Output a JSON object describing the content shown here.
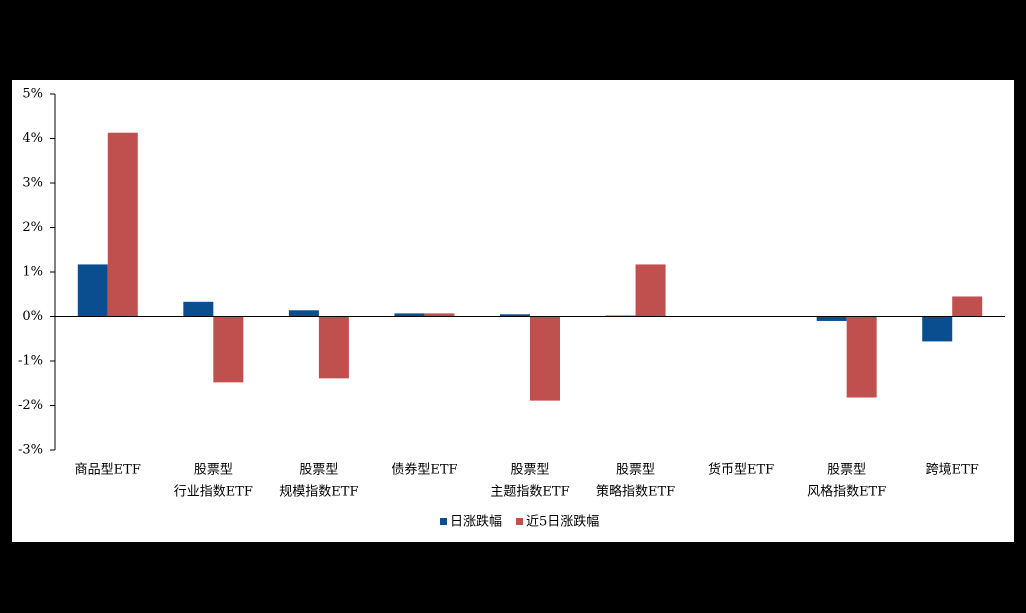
{
  "chart_data": {
    "type": "bar",
    "categories": [
      [
        "商品型ETF"
      ],
      [
        "股票型",
        "行业指数ETF"
      ],
      [
        "股票型",
        "规模指数ETF"
      ],
      [
        "债券型ETF"
      ],
      [
        "股票型",
        "主题指数ETF"
      ],
      [
        "股票型",
        "策略指数ETF"
      ],
      [
        "货币型ETF"
      ],
      [
        "股票型",
        "风格指数ETF"
      ],
      [
        "跨境ETF"
      ]
    ],
    "series": [
      {
        "name": "日涨跌幅",
        "color": "#0a4e8f",
        "values": [
          1.17,
          0.33,
          0.14,
          0.07,
          0.05,
          0.02,
          0.0,
          -0.1,
          -0.56
        ]
      },
      {
        "name": "近5日涨跌幅",
        "color": "#c0504d",
        "values": [
          4.13,
          -1.48,
          -1.39,
          0.07,
          -1.89,
          1.17,
          0.0,
          -1.82,
          0.45
        ]
      }
    ],
    "ylim": [
      -3,
      5
    ],
    "yticks": [
      {
        "value": -3,
        "label": "-3%"
      },
      {
        "value": -2,
        "label": "-2%"
      },
      {
        "value": -1,
        "label": "-1%"
      },
      {
        "value": 0,
        "label": "0%"
      },
      {
        "value": 1,
        "label": "1%"
      },
      {
        "value": 2,
        "label": "2%"
      },
      {
        "value": 3,
        "label": "3%"
      },
      {
        "value": 4,
        "label": "4%"
      },
      {
        "value": 5,
        "label": "5%"
      }
    ],
    "grid": false,
    "legend": "bottom"
  }
}
